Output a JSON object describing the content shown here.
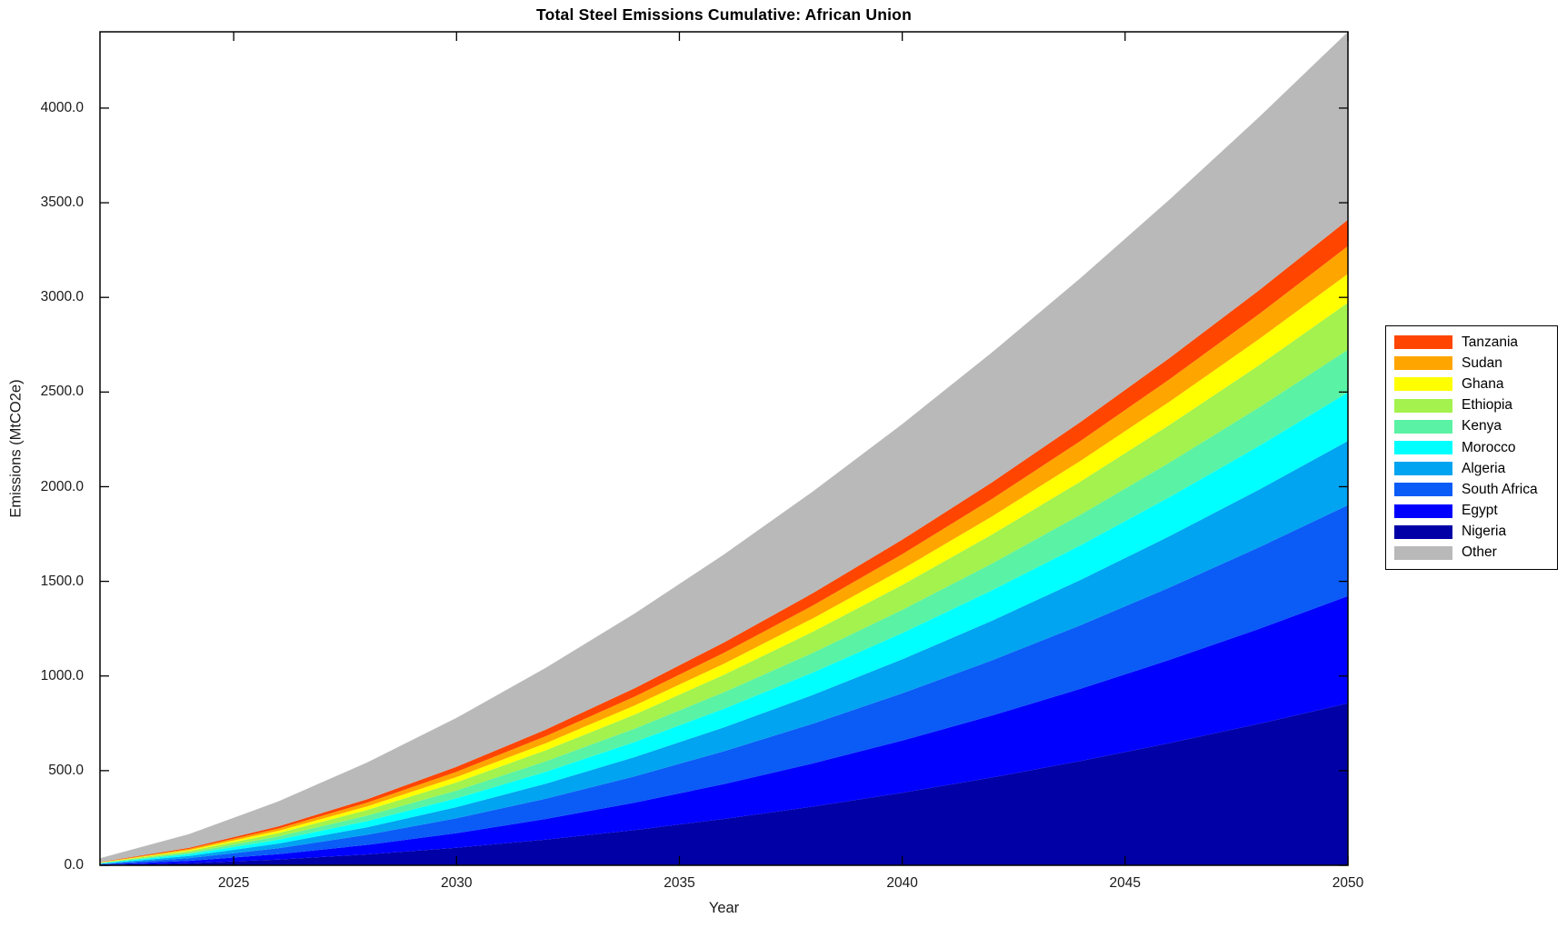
{
  "window": {
    "title": "Total Steel Emissions Cumulative: African Union"
  },
  "axes": {
    "xlabel": "Year",
    "ylabel": "Emissions (MtCO2e)"
  },
  "chart_data": {
    "type": "area",
    "stacked": true,
    "title": "Total Steel Emissions Cumulative: African Union",
    "xlabel": "Year",
    "ylabel": "Emissions (MtCO2e)",
    "xlim": [
      2022,
      2050
    ],
    "ylim": [
      0,
      4403
    ],
    "grid": false,
    "legend_position": "right-outside",
    "legend_order_top_to_bottom": [
      "Tanzania",
      "Sudan",
      "Ghana",
      "Ethiopia",
      "Kenya",
      "Morocco",
      "Algeria",
      "South Africa",
      "Egypt",
      "Nigeria",
      "Other"
    ],
    "x": [
      2022,
      2024,
      2026,
      2028,
      2030,
      2032,
      2034,
      2036,
      2038,
      2040,
      2042,
      2044,
      2046,
      2048,
      2050
    ],
    "xticks": {
      "values": [
        2025,
        2030,
        2035,
        2040,
        2045,
        2050
      ],
      "labels": [
        "2025",
        "2030",
        "2035",
        "2040",
        "2045",
        "2050"
      ]
    },
    "yticks": {
      "values": [
        0,
        500,
        1000,
        1500,
        2000,
        2500,
        3000,
        3500,
        4000
      ],
      "labels": [
        "0.0",
        "500.0",
        "1000.0",
        "1500.0",
        "2000.0",
        "2500.0",
        "3000.0",
        "3500.0",
        "4000.0"
      ]
    },
    "series_bottom_to_top": [
      {
        "name": "Nigeria",
        "color": "#0000A6",
        "values": [
          1.4,
          11.5,
          30.3,
          57.5,
          92.6,
          135.8,
          186.5,
          244.7,
          310.2,
          383.1,
          463.3,
          550.8,
          645.7,
          747.3,
          856.0
        ]
      },
      {
        "name": "Egypt",
        "color": "#0000FF",
        "values": [
          1.8,
          11.9,
          28.5,
          50.5,
          77.4,
          109.0,
          144.7,
          184.6,
          228.3,
          275.7,
          326.9,
          381.7,
          439.9,
          501.2,
          566.0
        ]
      },
      {
        "name": "South Africa",
        "color": "#0B5BF7",
        "values": [
          2.6,
          14.3,
          31.6,
          53.2,
          78.5,
          107.1,
          138.8,
          173.3,
          210.2,
          249.6,
          291.5,
          335.8,
          382.3,
          430.5,
          481.0
        ]
      },
      {
        "name": "Algeria",
        "color": "#00A4F0",
        "values": [
          2.2,
          11.3,
          24.3,
          40.2,
          58.6,
          79.2,
          101.7,
          126.1,
          152.1,
          179.8,
          208.9,
          239.5,
          271.4,
          304.5,
          339.0
        ]
      },
      {
        "name": "Morocco",
        "color": "#00FFFF",
        "values": [
          1.9,
          9.5,
          20.0,
          32.6,
          46.9,
          62.8,
          80.0,
          98.4,
          118.1,
          138.7,
          160.3,
          182.9,
          206.5,
          230.8,
          256.0
        ]
      },
      {
        "name": "Kenya",
        "color": "#5AF2A4",
        "values": [
          1.7,
          8.4,
          17.7,
          28.8,
          41.4,
          55.5,
          70.6,
          86.9,
          104.2,
          122.4,
          141.5,
          161.5,
          182.3,
          203.8,
          226.0
        ]
      },
      {
        "name": "Ethiopia",
        "color": "#A3F24D",
        "values": [
          1.6,
          8.3,
          17.8,
          29.4,
          42.9,
          57.9,
          74.4,
          92.3,
          111.3,
          131.5,
          152.8,
          175.2,
          198.5,
          222.8,
          248.0
        ]
      },
      {
        "name": "Ghana",
        "color": "#FFFF00",
        "values": [
          1.2,
          5.7,
          12.0,
          19.5,
          28.0,
          37.5,
          47.8,
          58.8,
          70.6,
          82.9,
          95.8,
          109.3,
          123.4,
          137.9,
          153.0
        ]
      },
      {
        "name": "Sudan",
        "color": "#FFA500",
        "values": [
          1.2,
          5.8,
          12.0,
          19.4,
          27.7,
          36.9,
          46.7,
          57.3,
          68.4,
          80.1,
          92.3,
          105.1,
          118.2,
          131.9,
          146.0
        ]
      },
      {
        "name": "Tanzania",
        "color": "#FF4500",
        "values": [
          1.2,
          5.5,
          11.5,
          18.5,
          26.4,
          35.1,
          44.5,
          54.5,
          65.1,
          76.2,
          87.9,
          100.0,
          112.6,
          125.6,
          139.0
        ]
      },
      {
        "name": "Other",
        "color": "#B9B9B9",
        "values": [
          20.7,
          73.1,
          131.5,
          193.8,
          258.5,
          325.9,
          394.9,
          465.3,
          537.4,
          610.7,
          685.2,
          760.3,
          836.9,
          914.7,
          993.0
        ]
      }
    ]
  }
}
